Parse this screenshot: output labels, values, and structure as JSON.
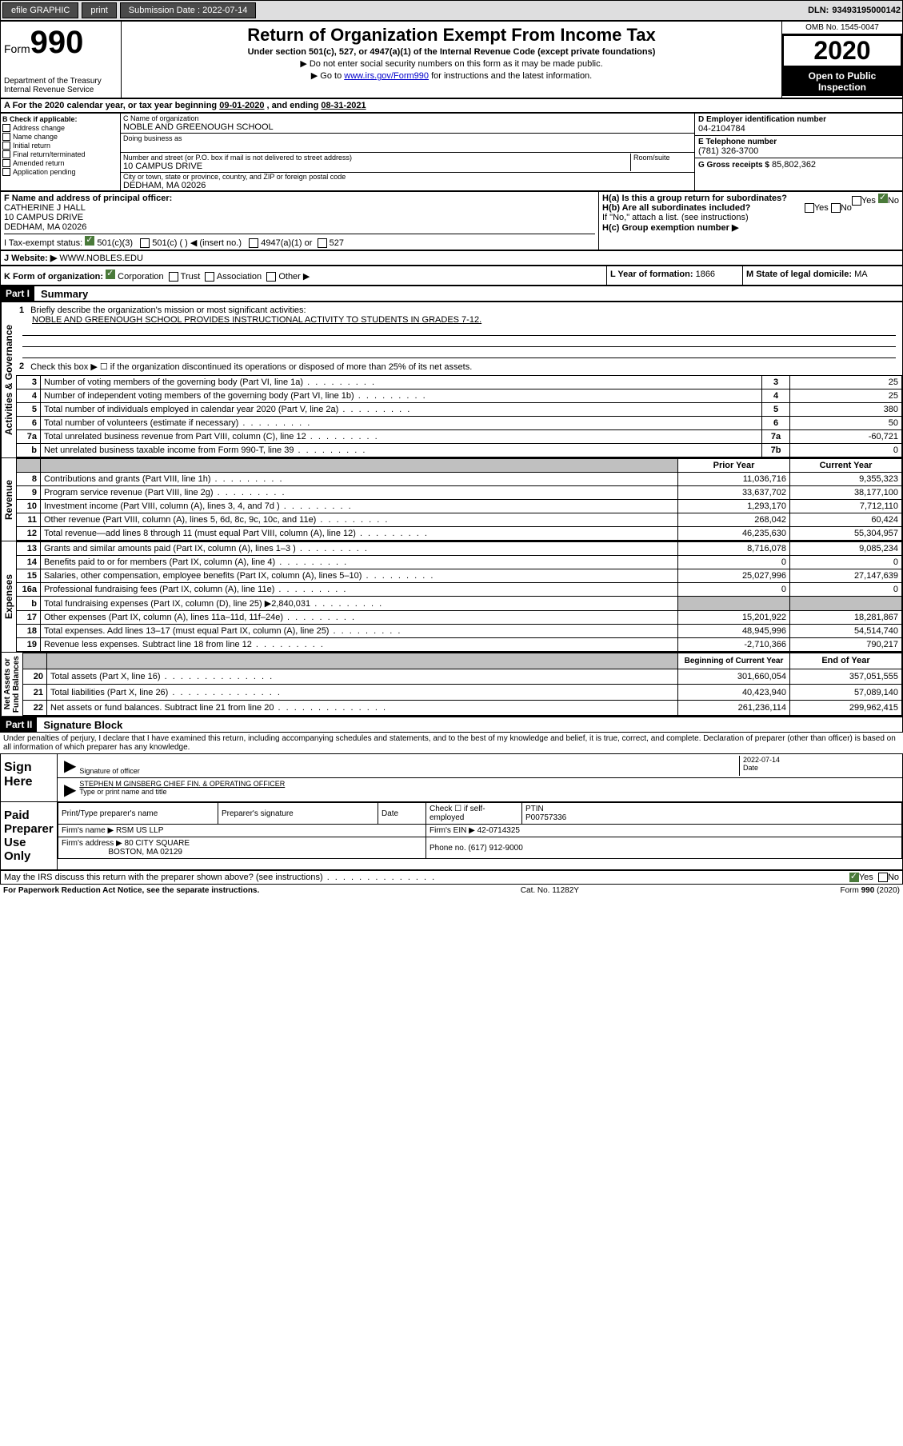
{
  "topbar": {
    "efile": "efile GRAPHIC",
    "print": "print",
    "subdate_label": "Submission Date :",
    "subdate": "2022-07-14",
    "dln_label": "DLN:",
    "dln": "93493195000142"
  },
  "header": {
    "form_label": "Form",
    "form_num": "990",
    "dept": "Department of the Treasury\nInternal Revenue Service",
    "title": "Return of Organization Exempt From Income Tax",
    "subtitle": "Under section 501(c), 527, or 4947(a)(1) of the Internal Revenue Code (except private foundations)",
    "instr1_prefix": "▶ Do not enter social security numbers on this form as it may be made public.",
    "instr2_prefix": "▶ Go to ",
    "instr2_link": "www.irs.gov/Form990",
    "instr2_suffix": " for instructions and the latest information.",
    "omb": "OMB No. 1545-0047",
    "year": "2020",
    "open_pub": "Open to Public\nInspection"
  },
  "line_a": {
    "text_prefix": "A For the 2020 calendar year, or tax year beginning ",
    "begin": "09-01-2020",
    "mid": " , and ending ",
    "end": "08-31-2021"
  },
  "section_b": {
    "label": "B Check if applicable:",
    "opts": [
      "Address change",
      "Name change",
      "Initial return",
      "Final return/terminated",
      "Amended return",
      "Application pending"
    ]
  },
  "section_c": {
    "name_label": "C Name of organization",
    "name": "NOBLE AND GREENOUGH SCHOOL",
    "dba_label": "Doing business as",
    "addr_label": "Number and street (or P.O. box if mail is not delivered to street address)",
    "room_label": "Room/suite",
    "addr": "10 CAMPUS DRIVE",
    "city_label": "City or town, state or province, country, and ZIP or foreign postal code",
    "city": "DEDHAM, MA  02026"
  },
  "section_d": {
    "label": "D Employer identification number",
    "val": "04-2104784"
  },
  "section_e": {
    "label": "E Telephone number",
    "val": "(781) 326-3700"
  },
  "section_g": {
    "label": "G Gross receipts $",
    "val": "85,802,362"
  },
  "section_f": {
    "label": "F Name and address of principal officer:",
    "name": "CATHERINE J HALL",
    "addr1": "10 CAMPUS DRIVE",
    "addr2": "DEDHAM, MA  02026"
  },
  "section_h": {
    "a": "H(a)  Is this a group return for subordinates?",
    "yes": "Yes",
    "no": "No",
    "b": "H(b)  Are all subordinates included?",
    "note": "If \"No,\" attach a list. (see instructions)",
    "c": "H(c)  Group exemption number ▶"
  },
  "section_i": {
    "label": "I Tax-exempt status:",
    "opt1": "501(c)(3)",
    "opt2": "501(c) (   ) ◀ (insert no.)",
    "opt3": "4947(a)(1) or",
    "opt4": "527"
  },
  "section_j": {
    "label": "J   Website: ▶",
    "val": "WWW.NOBLES.EDU"
  },
  "section_k": {
    "label": "K Form of organization:",
    "opts": [
      "Corporation",
      "Trust",
      "Association",
      "Other ▶"
    ]
  },
  "section_l": {
    "label": "L Year of formation:",
    "val": "1866"
  },
  "section_m": {
    "label": "M State of legal domicile:",
    "val": "MA"
  },
  "part1": {
    "header": "Part I",
    "title": "Summary",
    "q1_label": "1",
    "q1": "Briefly describe the organization's mission or most significant activities:",
    "q1_val": "NOBLE AND GREENOUGH SCHOOL PROVIDES INSTRUCTIONAL ACTIVITY TO STUDENTS IN GRADES 7-12.",
    "q2_label": "2",
    "q2": "Check this box ▶ ☐ if the organization discontinued its operations or disposed of more than 25% of its net assets.",
    "rows_ag": [
      {
        "n": "3",
        "desc": "Number of voting members of the governing body (Part VI, line 1a)",
        "box": "3",
        "val": "25"
      },
      {
        "n": "4",
        "desc": "Number of independent voting members of the governing body (Part VI, line 1b)",
        "box": "4",
        "val": "25"
      },
      {
        "n": "5",
        "desc": "Total number of individuals employed in calendar year 2020 (Part V, line 2a)",
        "box": "5",
        "val": "380"
      },
      {
        "n": "6",
        "desc": "Total number of volunteers (estimate if necessary)",
        "box": "6",
        "val": "50"
      },
      {
        "n": "7a",
        "desc": "Total unrelated business revenue from Part VIII, column (C), line 12",
        "box": "7a",
        "val": "-60,721"
      },
      {
        "n": "b",
        "desc": "Net unrelated business taxable income from Form 990-T, line 39",
        "box": "7b",
        "val": "0"
      }
    ],
    "col_prior": "Prior Year",
    "col_current": "Current Year",
    "revenue": [
      {
        "n": "8",
        "desc": "Contributions and grants (Part VIII, line 1h)",
        "prior": "11,036,716",
        "curr": "9,355,323"
      },
      {
        "n": "9",
        "desc": "Program service revenue (Part VIII, line 2g)",
        "prior": "33,637,702",
        "curr": "38,177,100"
      },
      {
        "n": "10",
        "desc": "Investment income (Part VIII, column (A), lines 3, 4, and 7d )",
        "prior": "1,293,170",
        "curr": "7,712,110"
      },
      {
        "n": "11",
        "desc": "Other revenue (Part VIII, column (A), lines 5, 6d, 8c, 9c, 10c, and 11e)",
        "prior": "268,042",
        "curr": "60,424"
      },
      {
        "n": "12",
        "desc": "Total revenue—add lines 8 through 11 (must equal Part VIII, column (A), line 12)",
        "prior": "46,235,630",
        "curr": "55,304,957"
      }
    ],
    "expenses": [
      {
        "n": "13",
        "desc": "Grants and similar amounts paid (Part IX, column (A), lines 1–3 )",
        "prior": "8,716,078",
        "curr": "9,085,234"
      },
      {
        "n": "14",
        "desc": "Benefits paid to or for members (Part IX, column (A), line 4)",
        "prior": "0",
        "curr": "0"
      },
      {
        "n": "15",
        "desc": "Salaries, other compensation, employee benefits (Part IX, column (A), lines 5–10)",
        "prior": "25,027,996",
        "curr": "27,147,639"
      },
      {
        "n": "16a",
        "desc": "Professional fundraising fees (Part IX, column (A), line 11e)",
        "prior": "0",
        "curr": "0"
      },
      {
        "n": "b",
        "desc": "Total fundraising expenses (Part IX, column (D), line 25) ▶2,840,031",
        "prior": "",
        "curr": "",
        "gray": true
      },
      {
        "n": "17",
        "desc": "Other expenses (Part IX, column (A), lines 11a–11d, 11f–24e)",
        "prior": "15,201,922",
        "curr": "18,281,867"
      },
      {
        "n": "18",
        "desc": "Total expenses. Add lines 13–17 (must equal Part IX, column (A), line 25)",
        "prior": "48,945,996",
        "curr": "54,514,740"
      },
      {
        "n": "19",
        "desc": "Revenue less expenses. Subtract line 18 from line 12",
        "prior": "-2,710,366",
        "curr": "790,217"
      }
    ],
    "col_begin": "Beginning of Current Year",
    "col_end": "End of Year",
    "netassets": [
      {
        "n": "20",
        "desc": "Total assets (Part X, line 16)",
        "prior": "301,660,054",
        "curr": "357,051,555"
      },
      {
        "n": "21",
        "desc": "Total liabilities (Part X, line 26)",
        "prior": "40,423,940",
        "curr": "57,089,140"
      },
      {
        "n": "22",
        "desc": "Net assets or fund balances. Subtract line 21 from line 20",
        "prior": "261,236,114",
        "curr": "299,962,415"
      }
    ]
  },
  "vlabels": {
    "ag": "Activities & Governance",
    "rev": "Revenue",
    "exp": "Expenses",
    "na": "Net Assets or\nFund Balances"
  },
  "part2": {
    "header": "Part II",
    "title": "Signature Block",
    "perjury": "Under penalties of perjury, I declare that I have examined this return, including accompanying schedules and statements, and to the best of my knowledge and belief, it is true, correct, and complete. Declaration of preparer (other than officer) is based on all information of which preparer has any knowledge.",
    "sign_here": "Sign\nHere",
    "sig_officer": "Signature of officer",
    "sig_date": "Date",
    "sig_date_val": "2022-07-14",
    "officer_name": "STEPHEN M GINSBERG  CHIEF FIN. & OPERATING OFFICER",
    "type_name": "Type or print name and title",
    "paid": "Paid\nPreparer\nUse Only",
    "prep_name_label": "Print/Type preparer's name",
    "prep_sig_label": "Preparer's signature",
    "date_label": "Date",
    "check_self": "Check ☐ if self-employed",
    "ptin_label": "PTIN",
    "ptin": "P00757336",
    "firm_name_label": "Firm's name    ▶",
    "firm_name": "RSM US LLP",
    "firm_ein_label": "Firm's EIN ▶",
    "firm_ein": "42-0714325",
    "firm_addr_label": "Firm's address ▶",
    "firm_addr1": "80 CITY SQUARE",
    "firm_addr2": "BOSTON, MA  02129",
    "phone_label": "Phone no.",
    "phone": "(617) 912-9000",
    "discuss": "May the IRS discuss this return with the preparer shown above? (see instructions)",
    "yes": "Yes",
    "no": "No"
  },
  "footer": {
    "left": "For Paperwork Reduction Act Notice, see the separate instructions.",
    "mid": "Cat. No. 11282Y",
    "right": "Form 990 (2020)"
  },
  "colors": {
    "bg": "#ffffff",
    "topbar_bg": "#dededf",
    "btn_bg": "#4a4a4a",
    "black": "#000000",
    "link": "#0000cc",
    "check_green": "#4a7a3a",
    "gray_cell": "#c0c0c0"
  },
  "typography": {
    "base_font": "Arial",
    "base_size": 11,
    "title_size": 22,
    "year_size": 32,
    "form990_size": 40
  }
}
